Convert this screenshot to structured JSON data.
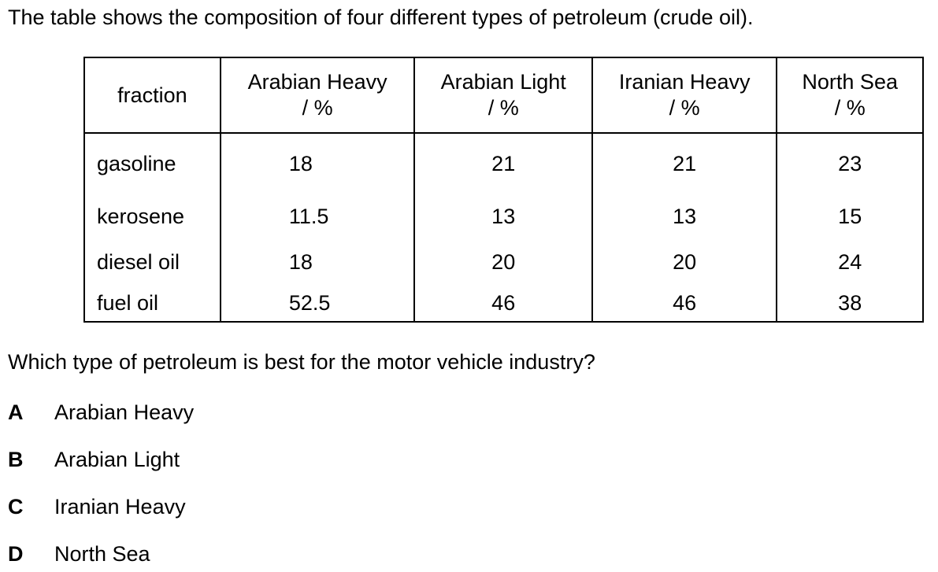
{
  "intro": "The table shows the composition of four different types of petroleum (crude oil).",
  "table": {
    "headers": [
      {
        "name": "fraction",
        "unit": ""
      },
      {
        "name": "Arabian Heavy",
        "unit": "/ %"
      },
      {
        "name": "Arabian Light",
        "unit": "/ %"
      },
      {
        "name": "Iranian Heavy",
        "unit": "/ %"
      },
      {
        "name": "North Sea",
        "unit": "/ %"
      }
    ],
    "rows": [
      {
        "fraction": "gasoline",
        "values": [
          "18",
          "21",
          "21",
          "23"
        ]
      },
      {
        "fraction": "kerosene",
        "values": [
          "11.5",
          "13",
          "13",
          "15"
        ]
      },
      {
        "fraction": "diesel oil",
        "values": [
          "18",
          "20",
          "20",
          "24"
        ]
      },
      {
        "fraction": "fuel oil",
        "values": [
          "52.5",
          "46",
          "46",
          "38"
        ]
      }
    ]
  },
  "question": "Which type of petroleum is best for the motor vehicle industry?",
  "options": [
    {
      "letter": "A",
      "text": "Arabian Heavy"
    },
    {
      "letter": "B",
      "text": "Arabian Light"
    },
    {
      "letter": "C",
      "text": "Iranian Heavy"
    },
    {
      "letter": "D",
      "text": "North Sea"
    }
  ]
}
